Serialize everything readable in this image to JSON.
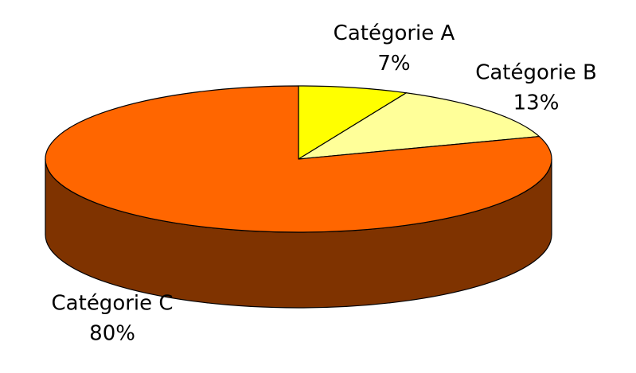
{
  "chart_data": {
    "type": "pie",
    "style": "3d",
    "title": "",
    "slices": [
      {
        "label": "Catégorie A",
        "value": 7,
        "display": "7%",
        "color": "#ffff00"
      },
      {
        "label": "Catégorie B",
        "value": 13,
        "display": "13%",
        "color": "#ffff99"
      },
      {
        "label": "Catégorie C",
        "value": 80,
        "display": "80%",
        "color": "#ff6600",
        "side_color": "#7f3300"
      }
    ],
    "legend": "none"
  }
}
